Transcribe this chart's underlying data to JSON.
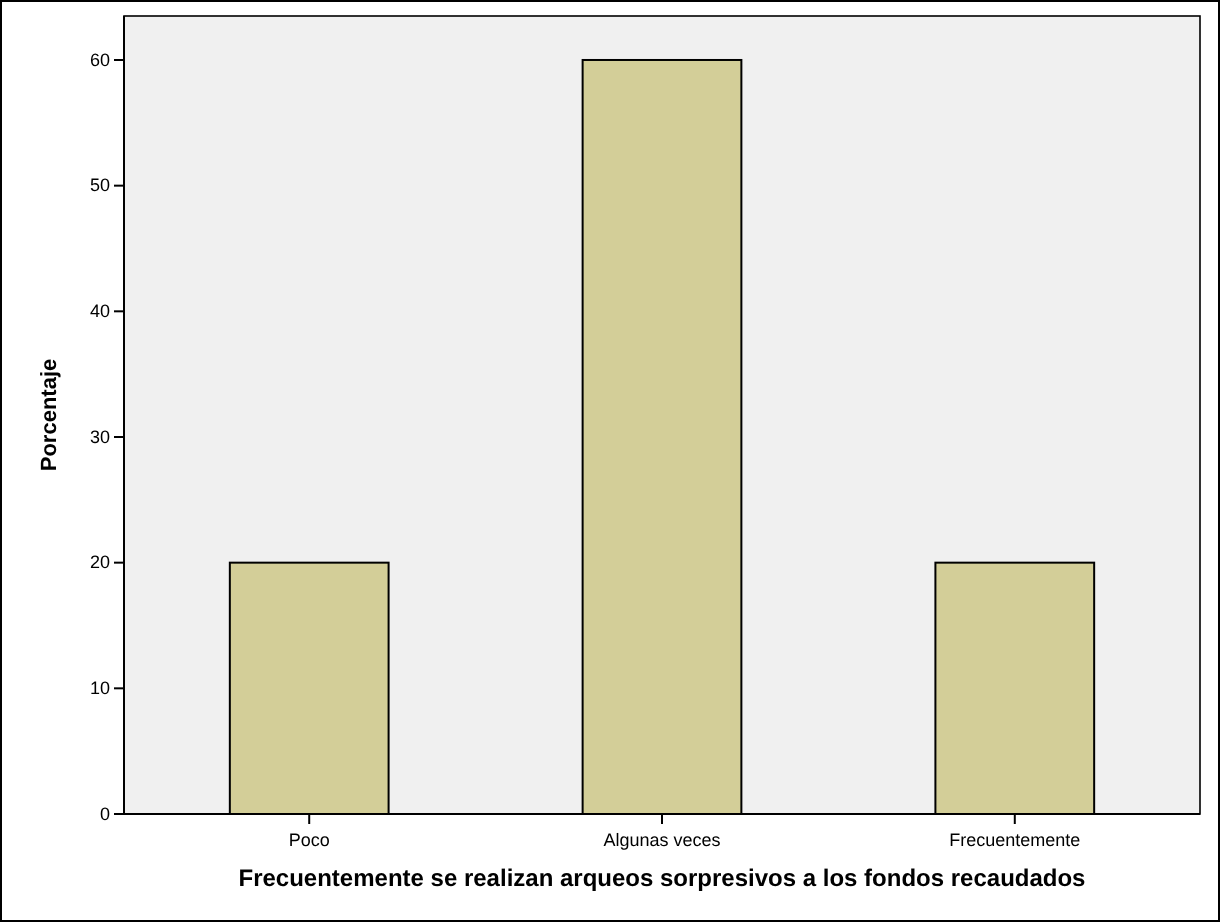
{
  "chart_data": {
    "type": "bar",
    "xlabel": "Frecuentemente se realizan arqueos sorpresivos a los fondos recaudados",
    "ylabel": "Porcentaje",
    "categories": [
      "Poco",
      "Algunas veces",
      "Frecuentemente"
    ],
    "values": [
      20,
      60,
      20
    ],
    "color": "#d3ce98",
    "ylim": [
      0,
      63.5
    ],
    "yticks": [
      0,
      10,
      20,
      30,
      40,
      50,
      60
    ],
    "grid": false
  }
}
